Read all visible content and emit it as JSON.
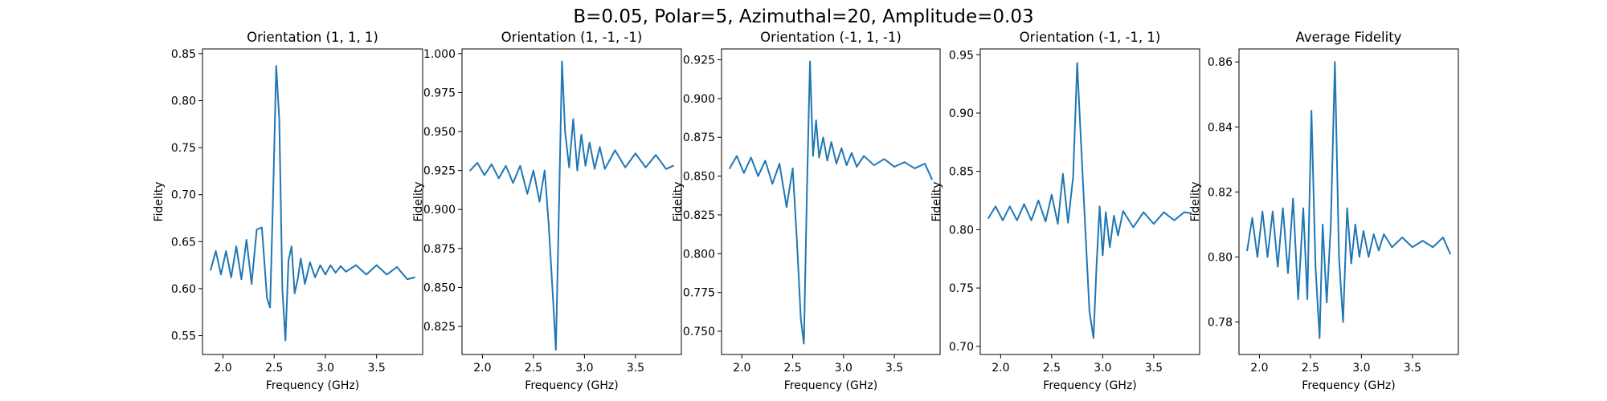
{
  "figure": {
    "title": "B=0.05, Polar=5, Azimuthal=20, Amplitude=0.03",
    "line_color": "#1f77b4"
  },
  "chart_data": [
    {
      "type": "line",
      "title": "Orientation (1, 1, 1)",
      "xlabel": "Frequency (GHz)",
      "ylabel": "Fidelity",
      "xlim": [
        1.8,
        3.95
      ],
      "ylim": [
        0.53,
        0.855
      ],
      "xticks": [
        2.0,
        2.5,
        3.0,
        3.5
      ],
      "xtick_labels": [
        "2.0",
        "2.5",
        "3.0",
        "3.5"
      ],
      "yticks": [
        0.55,
        0.6,
        0.65,
        0.7,
        0.75,
        0.8,
        0.85
      ],
      "ytick_labels": [
        "0.55",
        "0.60",
        "0.65",
        "0.70",
        "0.75",
        "0.80",
        "0.85"
      ],
      "grid": false,
      "x": [
        1.88,
        1.93,
        1.98,
        2.03,
        2.08,
        2.13,
        2.18,
        2.23,
        2.28,
        2.33,
        2.38,
        2.43,
        2.46,
        2.49,
        2.52,
        2.55,
        2.58,
        2.61,
        2.64,
        2.67,
        2.7,
        2.73,
        2.76,
        2.8,
        2.85,
        2.9,
        2.95,
        3.0,
        3.05,
        3.1,
        3.15,
        3.2,
        3.3,
        3.4,
        3.5,
        3.6,
        3.7,
        3.8,
        3.87
      ],
      "y": [
        0.62,
        0.64,
        0.615,
        0.64,
        0.612,
        0.645,
        0.61,
        0.652,
        0.605,
        0.663,
        0.665,
        0.59,
        0.58,
        0.7,
        0.837,
        0.78,
        0.6,
        0.545,
        0.63,
        0.645,
        0.595,
        0.61,
        0.632,
        0.605,
        0.628,
        0.612,
        0.625,
        0.615,
        0.625,
        0.617,
        0.624,
        0.618,
        0.625,
        0.615,
        0.625,
        0.615,
        0.623,
        0.61,
        0.612
      ]
    },
    {
      "type": "line",
      "title": "Orientation (1, -1, -1)",
      "xlabel": "Frequency (GHz)",
      "ylabel": "Fidelity",
      "xlim": [
        1.8,
        3.95
      ],
      "ylim": [
        0.807,
        1.003
      ],
      "xticks": [
        2.0,
        2.5,
        3.0,
        3.5
      ],
      "xtick_labels": [
        "2.0",
        "2.5",
        "3.0",
        "3.5"
      ],
      "yticks": [
        0.825,
        0.85,
        0.875,
        0.9,
        0.925,
        0.95,
        0.975,
        1.0
      ],
      "ytick_labels": [
        "0.825",
        "0.850",
        "0.875",
        "0.900",
        "0.925",
        "0.950",
        "0.975",
        "1.000"
      ],
      "grid": false,
      "x": [
        1.88,
        1.95,
        2.02,
        2.09,
        2.16,
        2.23,
        2.3,
        2.37,
        2.44,
        2.5,
        2.56,
        2.61,
        2.65,
        2.69,
        2.72,
        2.75,
        2.78,
        2.81,
        2.85,
        2.89,
        2.93,
        2.97,
        3.01,
        3.05,
        3.1,
        3.15,
        3.2,
        3.3,
        3.4,
        3.5,
        3.6,
        3.7,
        3.8,
        3.87
      ],
      "y": [
        0.925,
        0.93,
        0.922,
        0.929,
        0.92,
        0.928,
        0.917,
        0.928,
        0.91,
        0.925,
        0.905,
        0.925,
        0.89,
        0.845,
        0.81,
        0.9,
        0.995,
        0.95,
        0.927,
        0.958,
        0.925,
        0.948,
        0.928,
        0.943,
        0.926,
        0.94,
        0.926,
        0.938,
        0.927,
        0.936,
        0.927,
        0.935,
        0.926,
        0.928
      ]
    },
    {
      "type": "line",
      "title": "Orientation (-1, 1, -1)",
      "xlabel": "Frequency (GHz)",
      "ylabel": "Fidelity",
      "xlim": [
        1.8,
        3.95
      ],
      "ylim": [
        0.735,
        0.932
      ],
      "xticks": [
        2.0,
        2.5,
        3.0,
        3.5
      ],
      "xtick_labels": [
        "2.0",
        "2.5",
        "3.0",
        "3.5"
      ],
      "yticks": [
        0.75,
        0.775,
        0.8,
        0.825,
        0.85,
        0.875,
        0.9,
        0.925
      ],
      "ytick_labels": [
        "0.750",
        "0.775",
        "0.800",
        "0.825",
        "0.850",
        "0.875",
        "0.900",
        "0.925"
      ],
      "grid": false,
      "x": [
        1.88,
        1.95,
        2.02,
        2.09,
        2.16,
        2.23,
        2.3,
        2.37,
        2.44,
        2.5,
        2.54,
        2.58,
        2.61,
        2.64,
        2.67,
        2.7,
        2.73,
        2.76,
        2.8,
        2.84,
        2.88,
        2.93,
        2.98,
        3.03,
        3.08,
        3.13,
        3.2,
        3.3,
        3.4,
        3.5,
        3.6,
        3.7,
        3.8,
        3.87
      ],
      "y": [
        0.855,
        0.863,
        0.852,
        0.862,
        0.85,
        0.86,
        0.845,
        0.858,
        0.83,
        0.855,
        0.81,
        0.758,
        0.742,
        0.84,
        0.924,
        0.863,
        0.886,
        0.862,
        0.875,
        0.86,
        0.872,
        0.858,
        0.868,
        0.857,
        0.865,
        0.856,
        0.863,
        0.857,
        0.861,
        0.856,
        0.859,
        0.855,
        0.858,
        0.848
      ]
    },
    {
      "type": "line",
      "title": "Orientation (-1, -1, 1)",
      "xlabel": "Frequency (GHz)",
      "ylabel": "Fidelity",
      "xlim": [
        1.8,
        3.95
      ],
      "ylim": [
        0.693,
        0.955
      ],
      "xticks": [
        2.0,
        2.5,
        3.0,
        3.5
      ],
      "xtick_labels": [
        "2.0",
        "2.5",
        "3.0",
        "3.5"
      ],
      "yticks": [
        0.7,
        0.75,
        0.8,
        0.85,
        0.9,
        0.95
      ],
      "ytick_labels": [
        "0.70",
        "0.75",
        "0.80",
        "0.85",
        "0.90",
        "0.95"
      ],
      "grid": false,
      "x": [
        1.88,
        1.95,
        2.02,
        2.09,
        2.16,
        2.23,
        2.3,
        2.37,
        2.44,
        2.5,
        2.56,
        2.61,
        2.66,
        2.71,
        2.75,
        2.79,
        2.83,
        2.87,
        2.91,
        2.94,
        2.97,
        3.0,
        3.03,
        3.07,
        3.11,
        3.15,
        3.2,
        3.3,
        3.4,
        3.5,
        3.6,
        3.7,
        3.8,
        3.87
      ],
      "y": [
        0.81,
        0.82,
        0.808,
        0.82,
        0.808,
        0.822,
        0.808,
        0.825,
        0.807,
        0.83,
        0.805,
        0.848,
        0.806,
        0.845,
        0.943,
        0.87,
        0.8,
        0.73,
        0.707,
        0.77,
        0.82,
        0.778,
        0.815,
        0.785,
        0.812,
        0.795,
        0.816,
        0.802,
        0.815,
        0.805,
        0.815,
        0.808,
        0.815,
        0.814
      ]
    },
    {
      "type": "line",
      "title": "Average Fidelity",
      "xlabel": "Frequency (GHz)",
      "ylabel": "Fidelity",
      "xlim": [
        1.8,
        3.95
      ],
      "ylim": [
        0.77,
        0.864
      ],
      "xticks": [
        2.0,
        2.5,
        3.0,
        3.5
      ],
      "xtick_labels": [
        "2.0",
        "2.5",
        "3.0",
        "3.5"
      ],
      "yticks": [
        0.78,
        0.8,
        0.82,
        0.84,
        0.86
      ],
      "ytick_labels": [
        "0.78",
        "0.80",
        "0.82",
        "0.84",
        "0.86"
      ],
      "grid": false,
      "x": [
        1.88,
        1.93,
        1.98,
        2.03,
        2.08,
        2.13,
        2.18,
        2.23,
        2.28,
        2.33,
        2.38,
        2.43,
        2.47,
        2.51,
        2.55,
        2.59,
        2.62,
        2.66,
        2.7,
        2.74,
        2.78,
        2.82,
        2.86,
        2.9,
        2.94,
        2.98,
        3.02,
        3.07,
        3.12,
        3.17,
        3.22,
        3.3,
        3.4,
        3.5,
        3.6,
        3.7,
        3.8,
        3.87
      ],
      "y": [
        0.802,
        0.812,
        0.8,
        0.814,
        0.8,
        0.814,
        0.797,
        0.815,
        0.795,
        0.818,
        0.787,
        0.815,
        0.787,
        0.845,
        0.797,
        0.775,
        0.81,
        0.786,
        0.81,
        0.86,
        0.8,
        0.78,
        0.815,
        0.798,
        0.81,
        0.8,
        0.808,
        0.8,
        0.807,
        0.802,
        0.807,
        0.803,
        0.806,
        0.803,
        0.805,
        0.803,
        0.806,
        0.801
      ]
    }
  ]
}
